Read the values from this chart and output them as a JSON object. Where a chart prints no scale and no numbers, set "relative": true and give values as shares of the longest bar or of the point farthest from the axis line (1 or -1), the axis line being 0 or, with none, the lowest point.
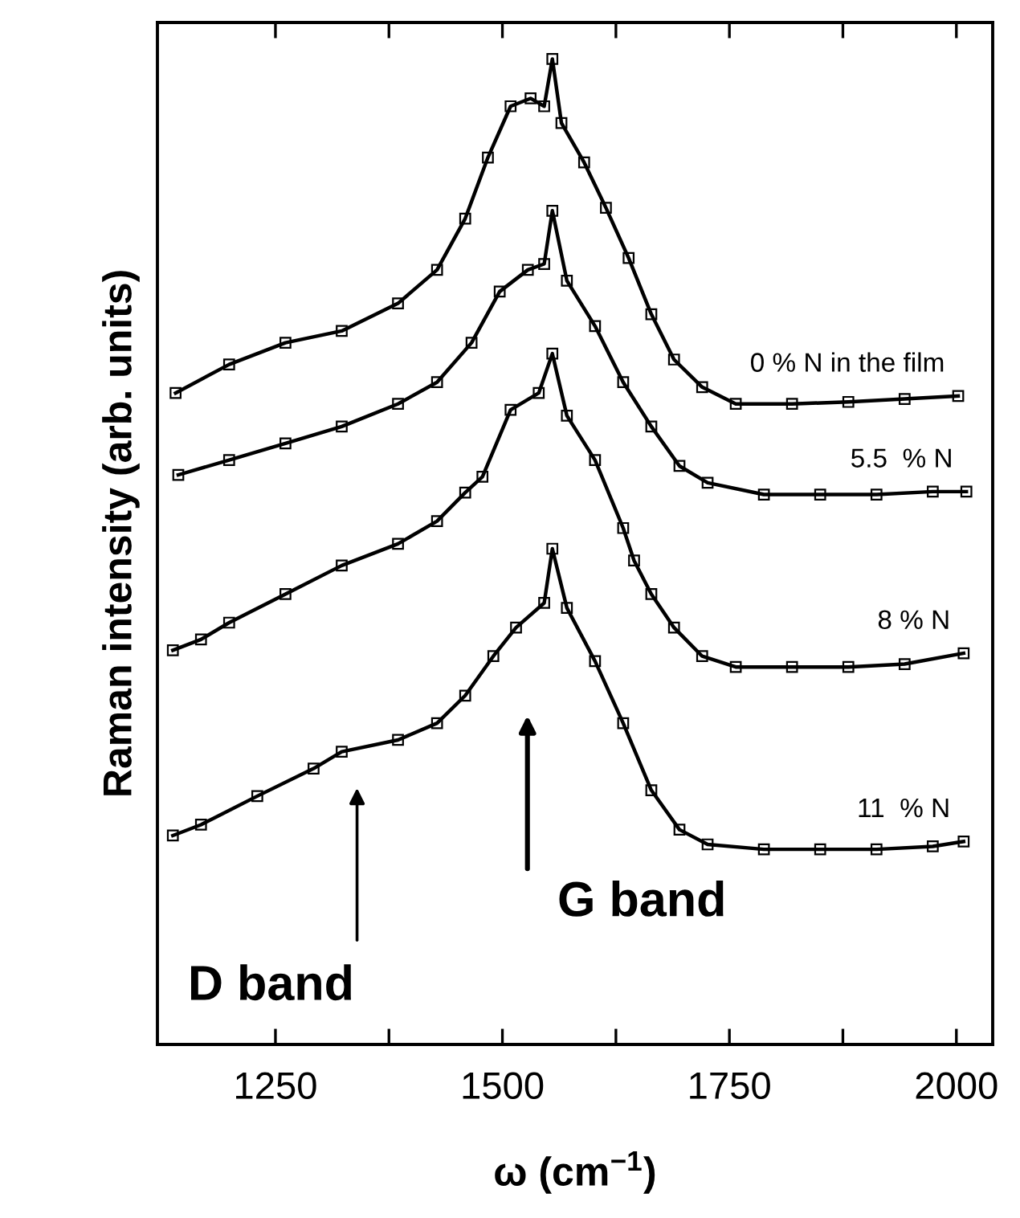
{
  "chart_data": {
    "type": "line",
    "relative": true,
    "xlabel": "ω (cm$^{−1}$)",
    "ylabel": "Raman intensity (arb. units)",
    "xlim": [
      1120,
      2040
    ],
    "xticks": [
      1250,
      {
        "value": 1375,
        "label": null
      },
      1500,
      {
        "value": 1625,
        "label": null
      },
      1750,
      {
        "value": 1875,
        "label": null
      },
      2000
    ],
    "marker": "square",
    "line_style": "solid",
    "grid": false,
    "legend": false,
    "series": [
      {
        "name": "0 % N in the film",
        "color": "#000000",
        "x": [
          1140,
          1199,
          1261,
          1323,
          1385,
          1428,
          1459,
          1484,
          1509,
          1531,
          1546,
          1555,
          1565,
          1590,
          1614,
          1639,
          1664,
          1689,
          1720,
          1757,
          1819,
          1881,
          1943,
          2002
        ],
        "values": [
          0.661,
          0.69,
          0.712,
          0.724,
          0.752,
          0.786,
          0.838,
          0.9,
          0.952,
          0.96,
          0.952,
          1.0,
          0.935,
          0.895,
          0.849,
          0.798,
          0.741,
          0.695,
          0.667,
          0.65,
          0.65,
          0.652,
          0.655,
          0.658
        ]
      },
      {
        "name": "5.5  % N",
        "color": "#000000",
        "x": [
          1143,
          1199,
          1261,
          1323,
          1385,
          1428,
          1466,
          1497,
          1528,
          1546,
          1555,
          1571,
          1602,
          1633,
          1664,
          1695,
          1726,
          1788,
          1850,
          1912,
          1974,
          2011
        ],
        "values": [
          0.578,
          0.593,
          0.61,
          0.627,
          0.65,
          0.672,
          0.712,
          0.764,
          0.786,
          0.792,
          0.846,
          0.775,
          0.729,
          0.672,
          0.627,
          0.587,
          0.57,
          0.558,
          0.558,
          0.558,
          0.561,
          0.561
        ]
      },
      {
        "name": "8 % N",
        "color": "#000000",
        "x": [
          1137,
          1168,
          1199,
          1261,
          1323,
          1385,
          1428,
          1459,
          1478,
          1509,
          1540,
          1555,
          1571,
          1602,
          1633,
          1645,
          1664,
          1689,
          1720,
          1757,
          1819,
          1881,
          1943,
          2008
        ],
        "values": [
          0.4,
          0.411,
          0.428,
          0.457,
          0.486,
          0.508,
          0.531,
          0.56,
          0.576,
          0.644,
          0.661,
          0.701,
          0.638,
          0.593,
          0.524,
          0.491,
          0.457,
          0.423,
          0.394,
          0.383,
          0.383,
          0.383,
          0.386,
          0.397
        ]
      },
      {
        "name": "11  % N",
        "color": "#000000",
        "x": [
          1137,
          1168,
          1230,
          1292,
          1323,
          1385,
          1428,
          1459,
          1490,
          1515,
          1546,
          1555,
          1571,
          1602,
          1633,
          1664,
          1695,
          1726,
          1788,
          1850,
          1912,
          1974,
          2008
        ],
        "values": [
          0.212,
          0.223,
          0.252,
          0.28,
          0.297,
          0.309,
          0.326,
          0.354,
          0.394,
          0.423,
          0.448,
          0.503,
          0.443,
          0.389,
          0.326,
          0.258,
          0.218,
          0.203,
          0.198,
          0.198,
          0.198,
          0.201,
          0.206
        ]
      }
    ],
    "annotations": [
      "G band",
      "D band"
    ]
  }
}
